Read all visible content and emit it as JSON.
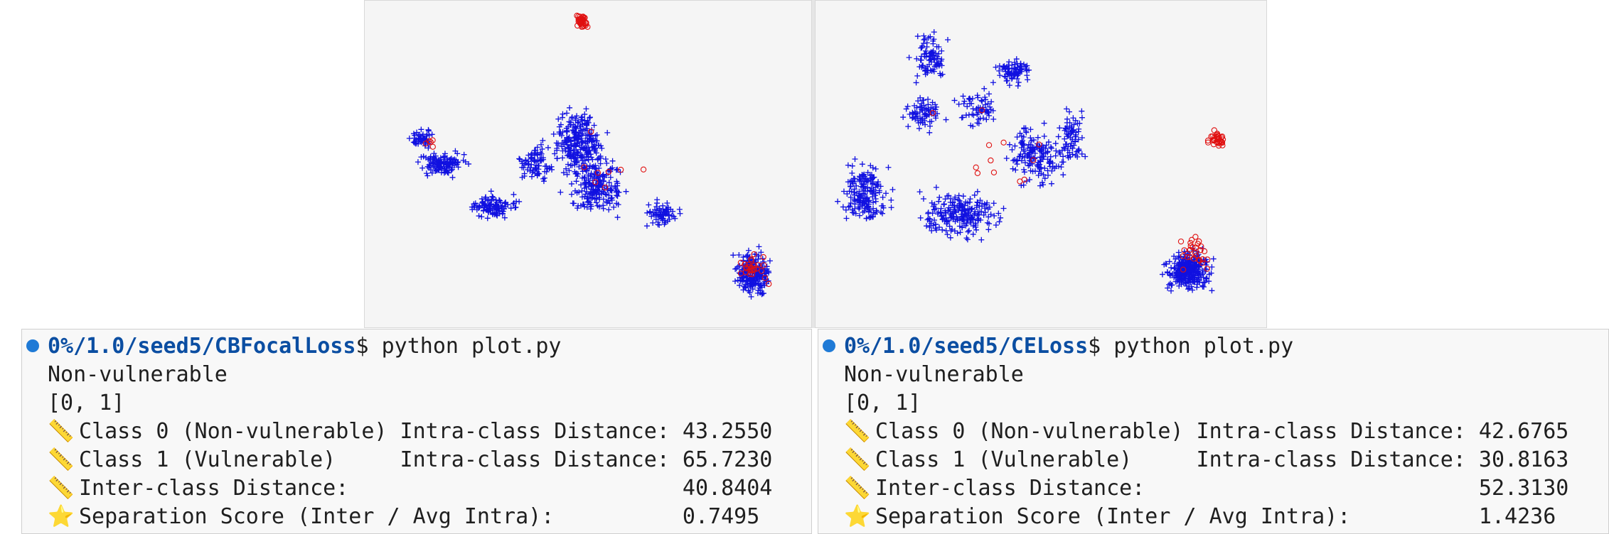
{
  "colors": {
    "class0": "#1010e0",
    "class1": "#e01010",
    "prompt_path": "#0b4ea2"
  },
  "plots": [
    {
      "id": "left",
      "legend": []
    },
    {
      "id": "right",
      "legend": []
    }
  ],
  "terminals": [
    {
      "path": "0%/1.0/seed5/CBFocalLoss",
      "command": "$ python plot.py",
      "lines": [
        "Non-vulnerable",
        "[0, 1]"
      ],
      "metrics": [
        {
          "icon": "ruler-icon",
          "label": "Class 0 (Non-vulnerable) Intra-class Distance: ",
          "value": "43.2550"
        },
        {
          "icon": "ruler-icon",
          "label": "Class 1 (Vulnerable)     Intra-class Distance: ",
          "value": "65.7230"
        },
        {
          "icon": "ruler-icon",
          "label": "Inter-class Distance:                          ",
          "value": "40.8404"
        },
        {
          "icon": "star-icon",
          "label": "Separation Score (Inter / Avg Intra):          ",
          "value": "0.7495"
        }
      ]
    },
    {
      "path": "0%/1.0/seed5/CELoss",
      "command": "$ python plot.py",
      "lines": [
        "Non-vulnerable",
        "[0, 1]"
      ],
      "metrics": [
        {
          "icon": "ruler-icon",
          "label": "Class 0 (Non-vulnerable) Intra-class Distance: ",
          "value": "42.6765"
        },
        {
          "icon": "ruler-icon",
          "label": "Class 1 (Vulnerable)     Intra-class Distance: ",
          "value": "30.8163"
        },
        {
          "icon": "ruler-icon",
          "label": "Inter-class Distance:                          ",
          "value": "52.3130"
        },
        {
          "icon": "star-icon",
          "label": "Separation Score (Inter / Avg Intra):          ",
          "value": "1.4236"
        }
      ]
    }
  ]
}
